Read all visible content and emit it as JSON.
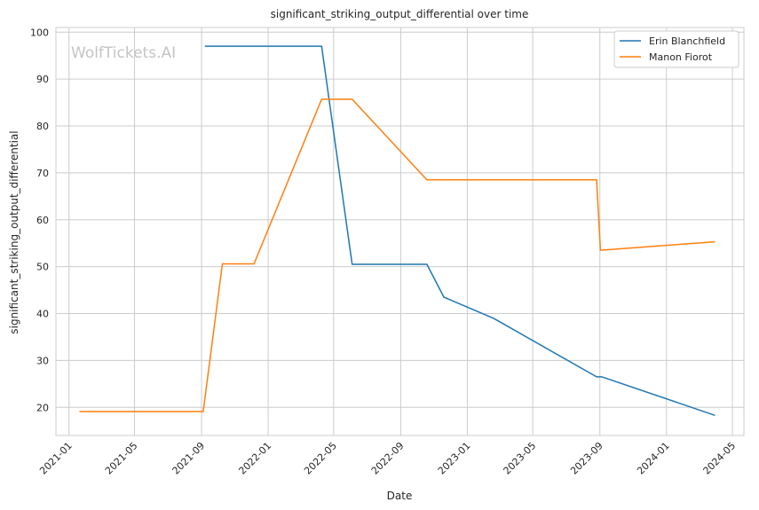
{
  "chart_data": {
    "type": "line",
    "title": "significant_striking_output_differential over time",
    "xlabel": "Date",
    "ylabel": "significant_striking_output_differential",
    "watermark": "WolfTickets.AI",
    "x_ticks": [
      "2021-01",
      "2021-05",
      "2021-09",
      "2022-01",
      "2022-05",
      "2022-09",
      "2023-01",
      "2023-05",
      "2023-09",
      "2024-01",
      "2024-05"
    ],
    "y_ticks": [
      20,
      30,
      40,
      50,
      60,
      70,
      80,
      90,
      100
    ],
    "xlim": [
      "2020-12-08",
      "2024-05-22"
    ],
    "ylim": [
      14,
      101
    ],
    "grid": true,
    "legend_position": "top-right",
    "series": [
      {
        "name": "Erin Blanchfield",
        "color": "#1f77b4",
        "points": [
          {
            "x": "2021-09-07",
            "y": 97
          },
          {
            "x": "2022-04-09",
            "y": 97
          },
          {
            "x": "2022-06-04",
            "y": 50.5
          },
          {
            "x": "2022-10-19",
            "y": 50.5
          },
          {
            "x": "2022-11-19",
            "y": 43.5
          },
          {
            "x": "2023-02-18",
            "y": 39
          },
          {
            "x": "2023-08-26",
            "y": 26.5
          },
          {
            "x": "2023-09-05",
            "y": 26.5
          },
          {
            "x": "2024-03-30",
            "y": 18.3
          }
        ]
      },
      {
        "name": "Manon Fiorot",
        "color": "#ff7f0e",
        "points": [
          {
            "x": "2021-01-20",
            "y": 19.1
          },
          {
            "x": "2021-09-04",
            "y": 19.1
          },
          {
            "x": "2021-10-09",
            "y": 50.6
          },
          {
            "x": "2021-12-06",
            "y": 50.6
          },
          {
            "x": "2022-04-09",
            "y": 85.7
          },
          {
            "x": "2022-06-04",
            "y": 85.7
          },
          {
            "x": "2022-10-19",
            "y": 68.5
          },
          {
            "x": "2023-08-26",
            "y": 68.5
          },
          {
            "x": "2023-09-02",
            "y": 53.5
          },
          {
            "x": "2024-03-30",
            "y": 55.3
          }
        ]
      }
    ]
  }
}
